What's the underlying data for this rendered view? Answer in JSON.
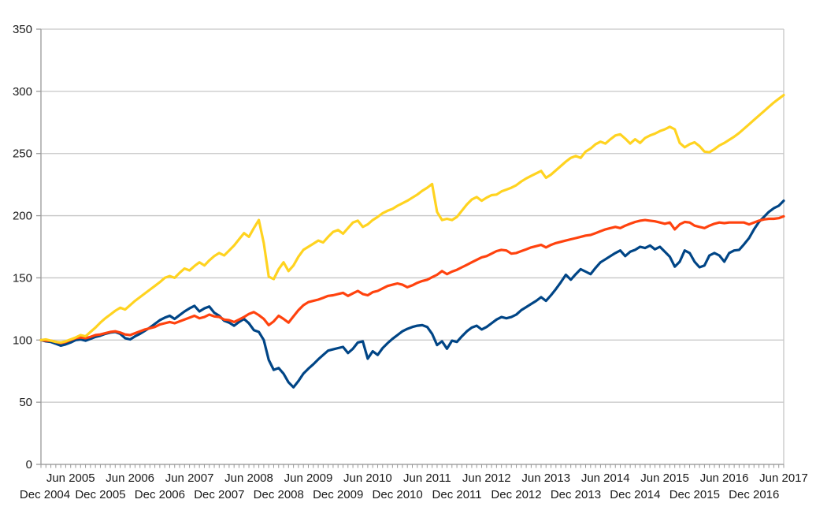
{
  "page": {
    "background_color": "#ffffff",
    "title": ""
  },
  "chart_data": {
    "type": "line",
    "title": "",
    "subtitle": "",
    "xlabel": "",
    "ylabel": "",
    "legend": "none",
    "grid": "horizontal",
    "ylim": [
      0,
      350
    ],
    "y_ticks": [
      0,
      50,
      100,
      150,
      200,
      250,
      300,
      350
    ],
    "x": {
      "start_label": "Dec 2004",
      "end_label": "Jun 2017",
      "frequency": "monthly",
      "num_points": 151,
      "minor_ticks": "every month"
    },
    "x_tick_labels_top_row": [
      "Jun 2005",
      "Jun 2006",
      "Jun 2007",
      "Jun 2008",
      "Jun 2009",
      "Jun 2010",
      "Jun 2011",
      "Jun 2012",
      "Jun 2013",
      "Jun 2014",
      "Jun 2015",
      "Jun 2016",
      "Jun 2017"
    ],
    "x_tick_labels_bottom_row": [
      "Dec 2004",
      "Dec 2005",
      "Dec 2006",
      "Dec 2007",
      "Dec 2008",
      "Dec 2009",
      "Dec 2010",
      "Dec 2011",
      "Dec 2012",
      "Dec 2013",
      "Dec 2014",
      "Dec 2015",
      "Dec 2016"
    ],
    "colors": {
      "grid": "#c6c6c6",
      "axis": "#999999",
      "labels": "#1a1a1a",
      "blue_series": "#004586",
      "red_series": "#FF420E",
      "yellow_series": "#FFD320"
    },
    "series": [
      {
        "name": "dark-blue-series",
        "color": "#004586",
        "start_value": 100,
        "min_value": 62,
        "end_value": 212,
        "values": [
          100,
          99,
          98.5,
          97,
          95.5,
          96.5,
          98,
          100,
          100.5,
          99.5,
          101,
          102.5,
          103.5,
          105,
          106,
          106.5,
          105,
          101.5,
          100.5,
          103,
          105,
          107.5,
          110,
          113,
          116,
          118,
          119.5,
          117,
          120,
          123,
          125.5,
          127.5,
          123,
          125.5,
          127,
          122,
          119.5,
          115.5,
          114,
          111.5,
          114.5,
          117,
          113.5,
          108,
          106.5,
          100,
          84,
          76,
          77.5,
          73,
          66,
          62,
          67,
          73,
          77,
          80.5,
          84.5,
          88,
          91.5,
          92.5,
          93.5,
          94.5,
          89.5,
          93,
          98,
          99,
          85,
          91,
          88,
          93.5,
          97.5,
          101,
          104,
          107,
          109,
          110.5,
          111.5,
          112,
          110.5,
          105,
          96,
          99,
          93,
          99.5,
          98.5,
          103,
          107,
          110,
          111.5,
          108.5,
          110.5,
          113.5,
          116.5,
          118.5,
          117.5,
          118.5,
          120.5,
          124,
          126.5,
          129,
          131.5,
          134.5,
          131.5,
          136,
          141,
          146.5,
          152.5,
          148.5,
          153,
          157,
          155,
          153,
          158,
          162.5,
          165,
          167.5,
          170,
          172,
          167.5,
          171,
          172.5,
          175,
          174,
          176,
          173,
          175,
          171,
          167,
          159,
          163,
          172,
          170,
          163,
          158.5,
          160,
          168,
          170,
          168,
          163,
          170,
          172,
          172.5,
          177,
          182,
          189,
          195,
          199,
          203,
          206,
          208,
          212
        ]
      },
      {
        "name": "red-series",
        "color": "#FF420E",
        "start_value": 100,
        "min_value": 97.5,
        "end_value": 199.5,
        "values": [
          100,
          99.5,
          99.5,
          98.5,
          97.5,
          98.5,
          100,
          101.5,
          102,
          101.5,
          102.5,
          104,
          104.5,
          105.5,
          106.5,
          107,
          106,
          104.5,
          104,
          105.5,
          107,
          108.5,
          109.5,
          110.5,
          112.5,
          113.5,
          114.5,
          113.5,
          115,
          116.5,
          118,
          119.5,
          117.5,
          118.5,
          120.5,
          119,
          118.5,
          116.5,
          116,
          114.5,
          116.5,
          118.5,
          121,
          122.5,
          120,
          117,
          112,
          115,
          119.5,
          117,
          114,
          119,
          124,
          128,
          130.5,
          131.5,
          132.5,
          134,
          135.5,
          136,
          137,
          138,
          135.5,
          137.5,
          139.5,
          137,
          136,
          138.5,
          139.5,
          141.5,
          143.5,
          144.5,
          145.5,
          144.5,
          142.5,
          144,
          146,
          147.5,
          148.5,
          150.5,
          152.5,
          155.5,
          153,
          155,
          156.5,
          158.5,
          160.5,
          162.5,
          164.5,
          166.5,
          167.5,
          169.5,
          171.5,
          172.5,
          172,
          169.5,
          170,
          171.5,
          173,
          174.5,
          175.5,
          176.5,
          174.5,
          176.5,
          178,
          179,
          180,
          181,
          182,
          183,
          184,
          184.5,
          186,
          187.5,
          189,
          190,
          191,
          190,
          192,
          193.5,
          195,
          196,
          196.5,
          196,
          195.5,
          194.5,
          193.5,
          194.5,
          189,
          193,
          195,
          194.5,
          192,
          191,
          190,
          192,
          193.5,
          194.5,
          194,
          194.5,
          194.5,
          194.5,
          194.5,
          193,
          194.5,
          196,
          197,
          197.5,
          197.5,
          198,
          199.5
        ]
      },
      {
        "name": "yellow-series",
        "color": "#FFD320",
        "start_value": 100,
        "min_value": 98,
        "end_value": 297,
        "values": [
          100,
          100.5,
          99.5,
          98.5,
          98,
          99,
          100.5,
          102,
          104,
          103,
          106.5,
          110,
          114,
          117.5,
          120.5,
          123.5,
          126,
          124.5,
          128,
          131.5,
          134.5,
          137.5,
          140.5,
          143.5,
          146.5,
          150,
          151.5,
          150,
          154,
          157.5,
          156,
          159.5,
          162.5,
          160,
          164,
          167.5,
          170,
          168,
          172,
          176,
          181,
          186,
          183,
          190,
          196.5,
          178,
          151,
          149,
          157,
          162.5,
          155.5,
          160,
          167,
          172.5,
          175,
          177.5,
          180,
          178.5,
          183,
          187,
          188.5,
          185.5,
          190,
          194.5,
          196,
          191,
          193,
          196.5,
          199,
          202,
          204,
          205.5,
          208,
          210,
          212,
          214.5,
          217,
          220,
          222.5,
          225.5,
          203,
          196.5,
          197.5,
          196.5,
          199,
          204,
          209,
          213,
          215,
          212,
          214.5,
          216.5,
          217,
          219.5,
          221,
          222.5,
          224.5,
          227.5,
          230,
          232,
          234,
          236,
          230.5,
          233,
          236.5,
          240,
          243.5,
          246.5,
          248,
          246.5,
          251.5,
          254,
          257.5,
          259.5,
          258,
          261.5,
          264.5,
          265.5,
          262,
          258,
          261.5,
          258.5,
          262.5,
          264.5,
          266,
          268,
          269.5,
          271.5,
          269.5,
          258.5,
          255,
          257.5,
          259,
          256,
          251.5,
          251,
          253.5,
          256.5,
          258.5,
          261,
          263.5,
          266.5,
          270,
          273.5,
          277,
          280.5,
          284,
          287.5,
          291,
          294,
          297
        ]
      }
    ]
  }
}
